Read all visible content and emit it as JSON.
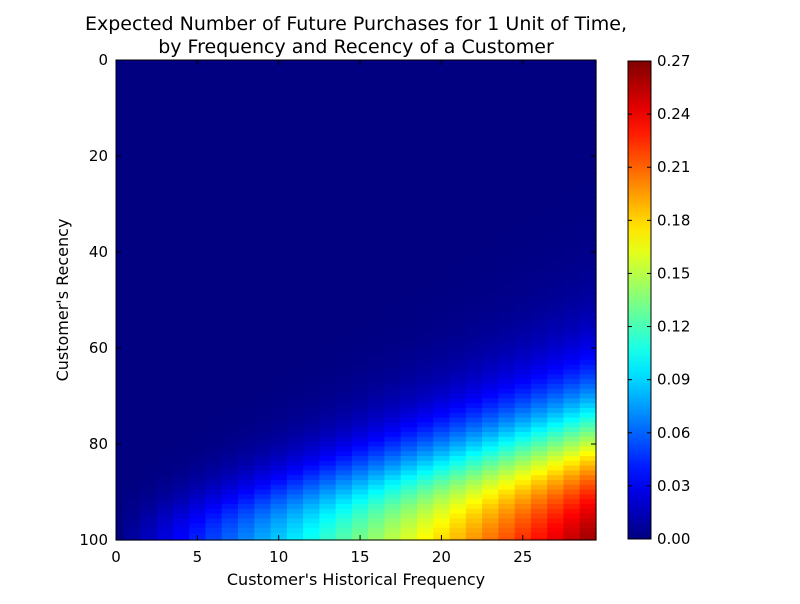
{
  "chart_data": {
    "type": "heatmap",
    "title": "Expected Number of Future Purchases for 1 Unit of Time,\nby Frequency and Recency of a Customer",
    "title_lines": [
      "Expected Number of Future Purchases for 1 Unit of Time,",
      "by Frequency and Recency of a Customer"
    ],
    "xlabel": "Customer's Historical Frequency",
    "ylabel": "Customer's Recency",
    "xlim": [
      0,
      29.5
    ],
    "ylim": [
      100,
      0
    ],
    "x_ticks": [
      0,
      5,
      10,
      15,
      20,
      25
    ],
    "y_ticks": [
      0,
      20,
      40,
      60,
      80,
      100
    ],
    "colormap": "jet",
    "colorbar": {
      "min": 0.0,
      "max": 0.27,
      "ticks": [
        "0.00",
        "0.03",
        "0.06",
        "0.09",
        "0.12",
        "0.15",
        "0.18",
        "0.21",
        "0.24",
        "0.27"
      ]
    },
    "grid": false,
    "frequency_count": 30,
    "recency_count": 101,
    "sample_values": {
      "frequency": [
        0,
        5,
        10,
        15,
        20,
        25,
        29
      ],
      "value_at_recency_100": [
        0.005,
        0.04,
        0.09,
        0.13,
        0.185,
        0.225,
        0.27
      ]
    }
  }
}
